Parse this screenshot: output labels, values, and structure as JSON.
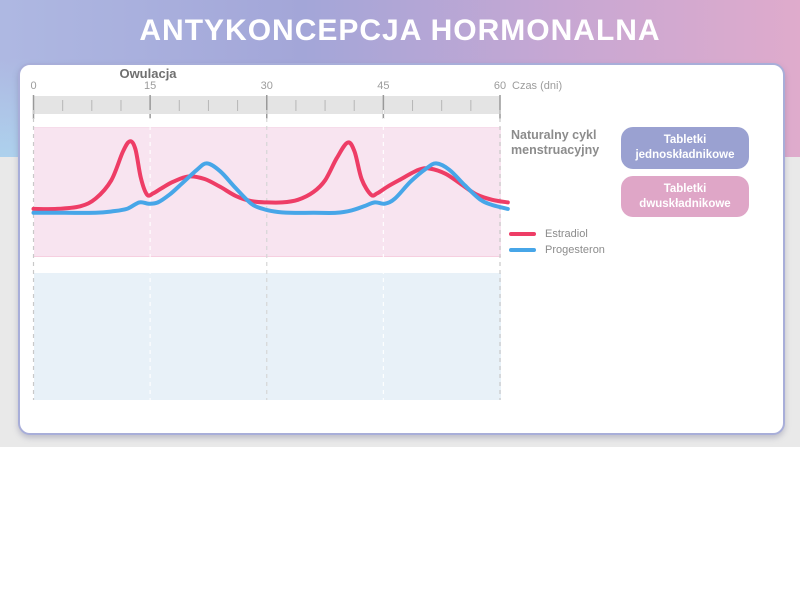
{
  "header": {
    "title": "ANTYKONCEPCJA HORMONALNA"
  },
  "buttons": [
    {
      "label": "Tabletki jednoskładnikowe",
      "color": "#9aa1d1"
    },
    {
      "label": "Tabletki dwuskładnikowe",
      "color": "#dfa6c7"
    }
  ],
  "chart_data": {
    "type": "line",
    "x_axis": {
      "label": "Czas (dni)",
      "ticks": [
        0,
        15,
        30,
        45,
        60
      ],
      "minor_tick_step": 3.75,
      "range": [
        0,
        60
      ]
    },
    "annotation": {
      "label": "Owulacja",
      "day": 15
    },
    "panels": [
      {
        "label": "Naturalny cykl menstruacyjny",
        "background": "#f8e4f0"
      },
      {
        "label": "",
        "background": "#e8f1f8"
      }
    ],
    "gridlines": [
      {
        "day": 0,
        "color": "#c9c9c9"
      },
      {
        "day": 15,
        "color": "rgba(255,255,255,0.9)"
      },
      {
        "day": 30,
        "color": "#d6d6d6"
      },
      {
        "day": 45,
        "color": "rgba(255,255,255,0.9)"
      },
      {
        "day": 60,
        "color": "#c9c9c9"
      }
    ],
    "series": [
      {
        "name": "Estradiol",
        "color": "#ee3d66",
        "points": [
          [
            0,
            37
          ],
          [
            3,
            37
          ],
          [
            6,
            39
          ],
          [
            8,
            45
          ],
          [
            10,
            59
          ],
          [
            11.5,
            81
          ],
          [
            12.4,
            89
          ],
          [
            13.1,
            83
          ],
          [
            13.8,
            61
          ],
          [
            14.6,
            48
          ],
          [
            15.4,
            49
          ],
          [
            16.5,
            53
          ],
          [
            18,
            58
          ],
          [
            20,
            62
          ],
          [
            22,
            60
          ],
          [
            24,
            54
          ],
          [
            26,
            47
          ],
          [
            28,
            43
          ],
          [
            30,
            42
          ],
          [
            32,
            42
          ],
          [
            34,
            44
          ],
          [
            36,
            50
          ],
          [
            37.5,
            59
          ],
          [
            39,
            76
          ],
          [
            40.4,
            88
          ],
          [
            41.3,
            81
          ],
          [
            42.2,
            60
          ],
          [
            43.4,
            48
          ],
          [
            44.2,
            49
          ],
          [
            45.5,
            54
          ],
          [
            47,
            59
          ],
          [
            49.5,
            67
          ],
          [
            51,
            68
          ],
          [
            53,
            64
          ],
          [
            55,
            56
          ],
          [
            57,
            48
          ],
          [
            59,
            44
          ],
          [
            61,
            42
          ]
        ]
      },
      {
        "name": "Progesteron",
        "color": "#47a6e8",
        "points": [
          [
            0,
            34
          ],
          [
            4,
            34
          ],
          [
            8,
            34
          ],
          [
            10,
            35
          ],
          [
            12,
            37
          ],
          [
            13.6,
            42
          ],
          [
            14.8,
            41
          ],
          [
            16,
            42
          ],
          [
            17.5,
            48
          ],
          [
            19,
            56
          ],
          [
            21,
            67
          ],
          [
            22.3,
            72
          ],
          [
            24,
            66
          ],
          [
            26,
            53
          ],
          [
            28,
            41
          ],
          [
            29.5,
            37
          ],
          [
            31,
            35
          ],
          [
            33,
            34
          ],
          [
            36,
            34
          ],
          [
            39,
            34
          ],
          [
            41,
            36
          ],
          [
            42.5,
            39
          ],
          [
            43.9,
            42
          ],
          [
            45.2,
            41
          ],
          [
            46.5,
            45
          ],
          [
            48.5,
            58
          ],
          [
            50.5,
            68
          ],
          [
            51.8,
            72
          ],
          [
            53.5,
            67
          ],
          [
            55.5,
            55
          ],
          [
            57.5,
            44
          ],
          [
            59,
            40
          ],
          [
            61,
            37
          ]
        ]
      }
    ]
  }
}
